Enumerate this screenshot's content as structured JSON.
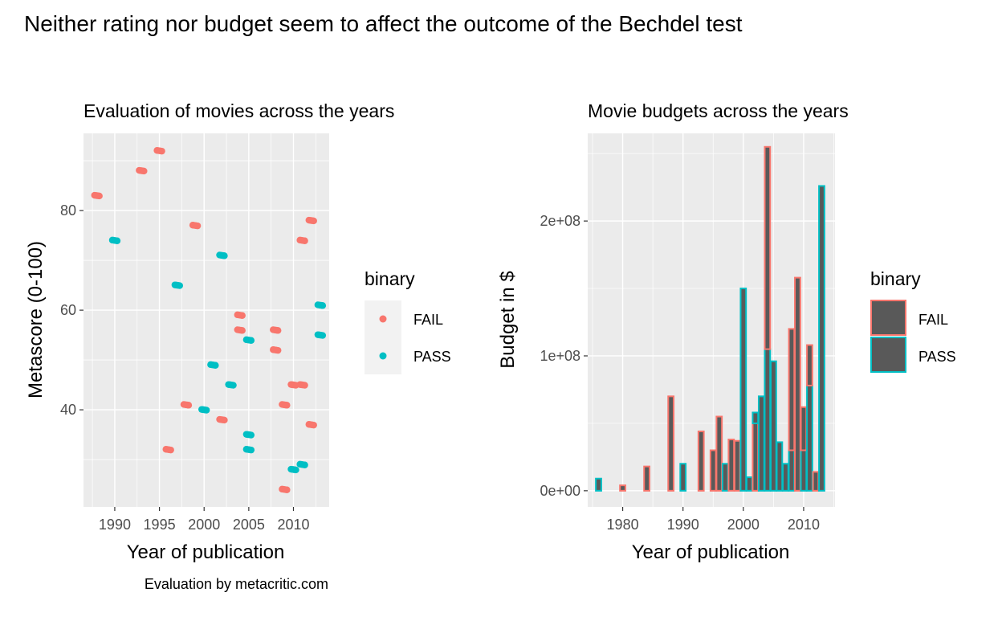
{
  "figure": {
    "title": "Neither rating nor budget seem to affect the outcome of the Bechdel test",
    "colors": {
      "FAIL": "#F8766D",
      "PASS": "#00BFC4",
      "panel": "#EBEBEB",
      "grid": "#FFFFFF",
      "bar_fill": "#595959"
    }
  },
  "chart_data": [
    {
      "type": "scatter",
      "title": "Evaluation of movies across the years",
      "xlabel": "Year of publication",
      "ylabel": "Metascore (0-100)",
      "caption": "Evaluation by metacritic.com",
      "xlim": [
        1986.5,
        2014
      ],
      "ylim": [
        20.5,
        95.5
      ],
      "x_ticks": [
        1990,
        1995,
        2000,
        2005,
        2010
      ],
      "y_ticks": [
        40,
        60,
        80
      ],
      "grid": true,
      "legend": {
        "title": "binary",
        "position": "right",
        "entries": [
          "FAIL",
          "PASS"
        ]
      },
      "series": [
        {
          "name": "FAIL",
          "points": [
            {
              "x": 1988,
              "y": 83
            },
            {
              "x": 1993,
              "y": 88
            },
            {
              "x": 1995,
              "y": 92
            },
            {
              "x": 1996,
              "y": 32
            },
            {
              "x": 1998,
              "y": 41
            },
            {
              "x": 1999,
              "y": 77
            },
            {
              "x": 2002,
              "y": 38
            },
            {
              "x": 2004,
              "y": 59
            },
            {
              "x": 2004,
              "y": 56
            },
            {
              "x": 2008,
              "y": 56
            },
            {
              "x": 2008,
              "y": 52
            },
            {
              "x": 2009,
              "y": 41
            },
            {
              "x": 2009,
              "y": 24
            },
            {
              "x": 2010,
              "y": 45
            },
            {
              "x": 2011,
              "y": 45
            },
            {
              "x": 2011,
              "y": 74
            },
            {
              "x": 2012,
              "y": 78
            },
            {
              "x": 2012,
              "y": 37
            }
          ]
        },
        {
          "name": "PASS",
          "points": [
            {
              "x": 1990,
              "y": 74
            },
            {
              "x": 1997,
              "y": 65
            },
            {
              "x": 2000,
              "y": 40
            },
            {
              "x": 2001,
              "y": 49
            },
            {
              "x": 2002,
              "y": 71
            },
            {
              "x": 2003,
              "y": 45
            },
            {
              "x": 2005,
              "y": 54
            },
            {
              "x": 2005,
              "y": 35
            },
            {
              "x": 2005,
              "y": 32
            },
            {
              "x": 2010,
              "y": 28
            },
            {
              "x": 2011,
              "y": 29
            },
            {
              "x": 2013,
              "y": 61
            },
            {
              "x": 2013,
              "y": 55
            }
          ]
        }
      ]
    },
    {
      "type": "bar",
      "title": "Movie budgets across the years",
      "xlabel": "Year of publication",
      "ylabel": "Budget in $",
      "xlim": [
        1974.2,
        2015.2
      ],
      "ylim": [
        -12000000,
        265000000
      ],
      "x_ticks": [
        1980,
        1990,
        2000,
        2010
      ],
      "y_ticks": [
        0,
        100000000,
        200000000
      ],
      "y_tick_labels": [
        "0e+00",
        "1e+08",
        "2e+08"
      ],
      "grid": true,
      "legend": {
        "title": "binary",
        "position": "right",
        "entries": [
          "FAIL",
          "PASS"
        ]
      },
      "bars": [
        {
          "year": 1976,
          "segments": [
            {
              "group": "PASS",
              "value": 9000000
            }
          ]
        },
        {
          "year": 1980,
          "segments": [
            {
              "group": "FAIL",
              "value": 4000000
            }
          ]
        },
        {
          "year": 1984,
          "segments": [
            {
              "group": "FAIL",
              "value": 18000000
            }
          ]
        },
        {
          "year": 1988,
          "segments": [
            {
              "group": "FAIL",
              "value": 70000000
            }
          ]
        },
        {
          "year": 1990,
          "segments": [
            {
              "group": "PASS",
              "value": 20000000
            }
          ]
        },
        {
          "year": 1993,
          "segments": [
            {
              "group": "FAIL",
              "value": 44000000
            }
          ]
        },
        {
          "year": 1995,
          "segments": [
            {
              "group": "FAIL",
              "value": 30000000
            }
          ]
        },
        {
          "year": 1996,
          "segments": [
            {
              "group": "FAIL",
              "value": 55000000
            }
          ]
        },
        {
          "year": 1997,
          "segments": [
            {
              "group": "PASS",
              "value": 20000000
            }
          ]
        },
        {
          "year": 1998,
          "segments": [
            {
              "group": "FAIL",
              "value": 38000000
            }
          ]
        },
        {
          "year": 1999,
          "segments": [
            {
              "group": "FAIL",
              "value": 37000000
            }
          ]
        },
        {
          "year": 2000,
          "segments": [
            {
              "group": "PASS",
              "value": 150000000
            }
          ]
        },
        {
          "year": 2001,
          "segments": [
            {
              "group": "PASS",
              "value": 10000000
            }
          ]
        },
        {
          "year": 2002,
          "segments": [
            {
              "group": "FAIL",
              "value": 50000000
            },
            {
              "group": "PASS",
              "value": 8000000
            }
          ]
        },
        {
          "year": 2003,
          "segments": [
            {
              "group": "PASS",
              "value": 70000000
            }
          ]
        },
        {
          "year": 2004,
          "segments": [
            {
              "group": "PASS",
              "value": 105000000
            },
            {
              "group": "FAIL",
              "value": 150000000
            }
          ]
        },
        {
          "year": 2005,
          "segments": [
            {
              "group": "PASS",
              "value": 96000000
            }
          ]
        },
        {
          "year": 2006,
          "segments": [
            {
              "group": "PASS",
              "value": 36000000
            }
          ]
        },
        {
          "year": 2007,
          "segments": [
            {
              "group": "PASS",
              "value": 20000000
            }
          ]
        },
        {
          "year": 2008,
          "segments": [
            {
              "group": "PASS",
              "value": 30000000
            },
            {
              "group": "FAIL",
              "value": 90000000
            }
          ]
        },
        {
          "year": 2009,
          "segments": [
            {
              "group": "FAIL",
              "value": 158000000
            }
          ]
        },
        {
          "year": 2010,
          "segments": [
            {
              "group": "PASS",
              "value": 30000000
            },
            {
              "group": "FAIL",
              "value": 32000000
            }
          ]
        },
        {
          "year": 2011,
          "segments": [
            {
              "group": "PASS",
              "value": 78000000
            },
            {
              "group": "FAIL",
              "value": 30000000
            }
          ]
        },
        {
          "year": 2012,
          "segments": [
            {
              "group": "FAIL",
              "value": 14000000
            }
          ]
        },
        {
          "year": 2013,
          "segments": [
            {
              "group": "PASS",
              "value": 226000000
            }
          ]
        }
      ]
    }
  ]
}
